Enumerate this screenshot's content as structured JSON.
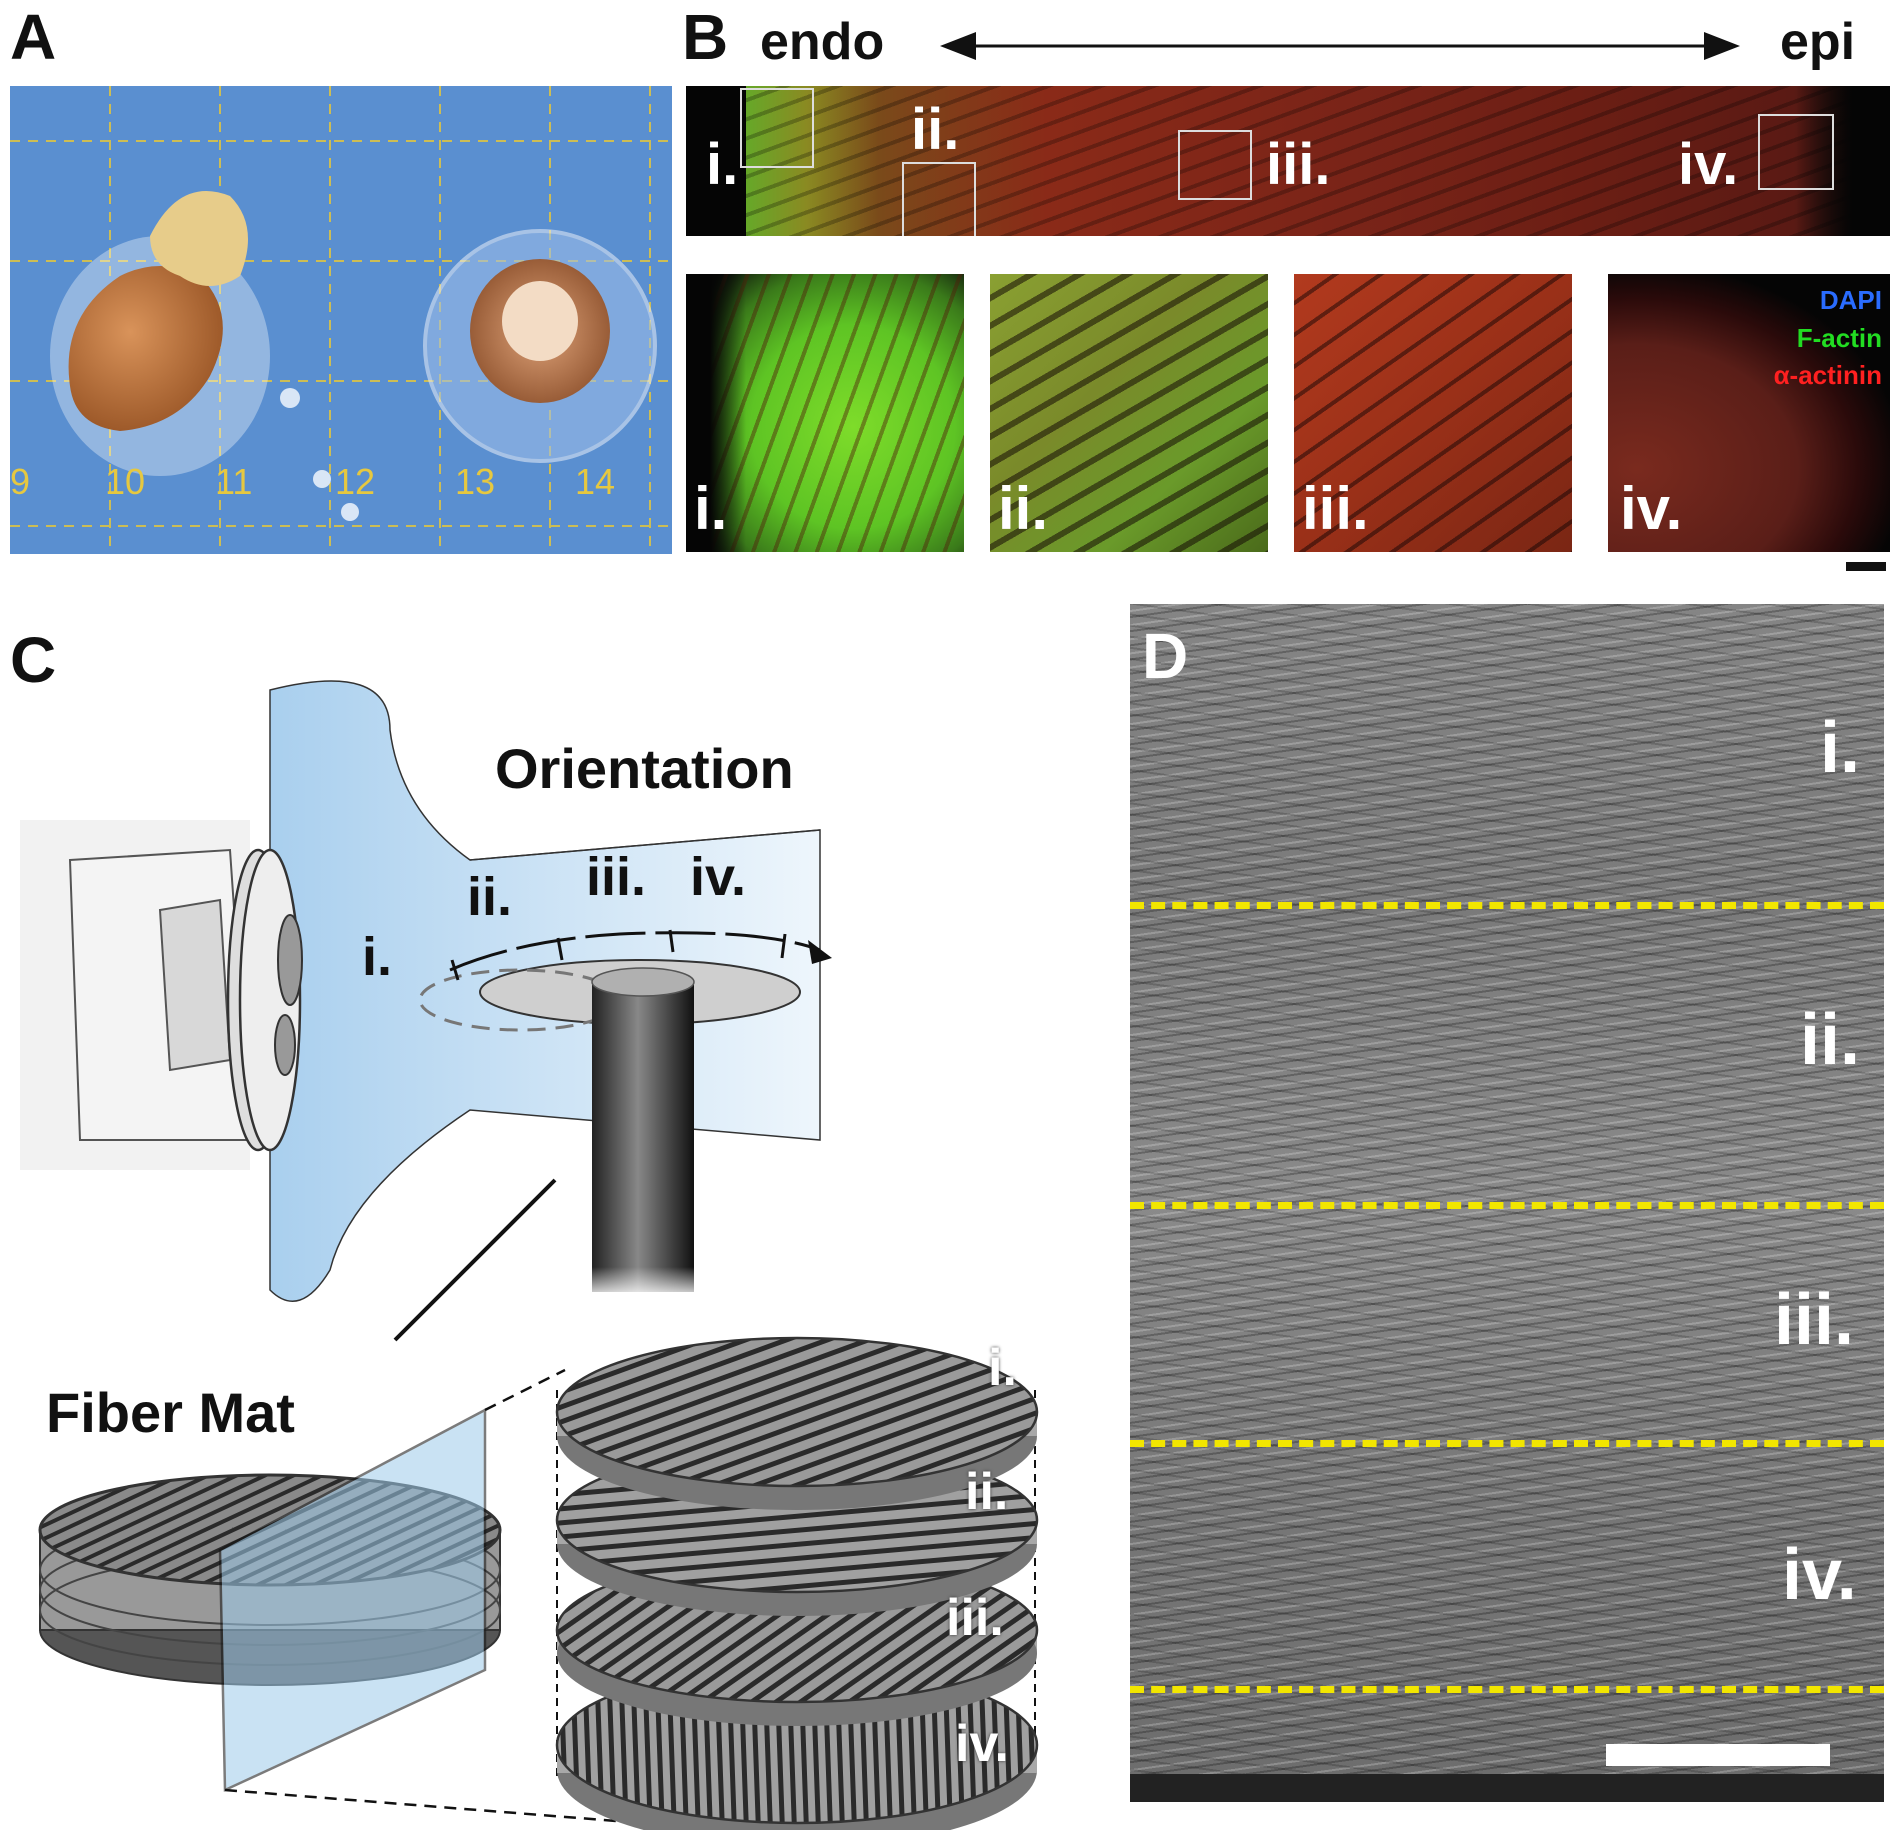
{
  "panelA": {
    "letter": "A",
    "ruler_ticks": [
      "9",
      "10",
      "11",
      "12",
      "13",
      "14"
    ]
  },
  "panelB": {
    "letter": "B",
    "left_label": "endo",
    "right_label": "epi",
    "strip_rois": [
      "i.",
      "ii.",
      "iii.",
      "iv."
    ],
    "insets": [
      "i.",
      "ii.",
      "iii.",
      "iv."
    ],
    "legend": [
      {
        "label": "DAPI",
        "color": "#2a6cff"
      },
      {
        "label": "F-actin",
        "color": "#22dd22"
      },
      {
        "label": "α-actinin",
        "color": "#ff2020"
      }
    ]
  },
  "panelC": {
    "letter": "C",
    "orientation_title": "Orientation",
    "orientation_labels": [
      "i.",
      "ii.",
      "iii.",
      "iv."
    ],
    "fiber_mat_label": "Fiber Mat",
    "layer_labels": [
      "i.",
      "ii.",
      "iii.",
      "iv."
    ]
  },
  "panelD": {
    "letter": "D",
    "region_labels": [
      "i.",
      "ii.",
      "iii.",
      "iv."
    ],
    "divider_color": "#f2e600"
  }
}
